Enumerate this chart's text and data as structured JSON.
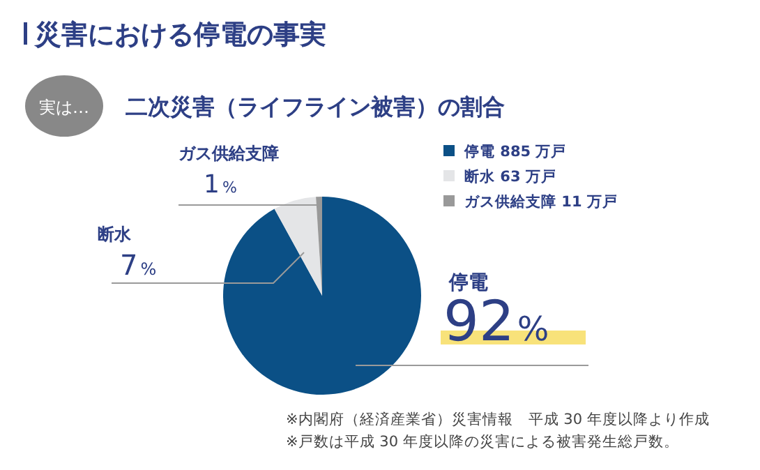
{
  "chart_data": {
    "type": "pie",
    "title": "災害における停電の事実",
    "subtitle": "二次災害（ライフライン被害）の割合",
    "categories": [
      "停電 885 万戸",
      "断水 63 万戸",
      "ガス供給支障 11 万戸"
    ],
    "values": [
      92,
      7,
      1
    ],
    "colors": [
      "#0b5086",
      "#e4e5e7",
      "#999999"
    ],
    "value_labels": [
      "停電\n92%",
      "断水\n7%",
      "ガス供給支障\n1%"
    ],
    "legend": "top right",
    "annotations": [
      "実は…",
      "※内閣府（経済産業省）災害情報　平成 30 年度以降より作成",
      "※戸数は平成 30 年度以降の災害による被害発生総戸数。"
    ]
  }
}
